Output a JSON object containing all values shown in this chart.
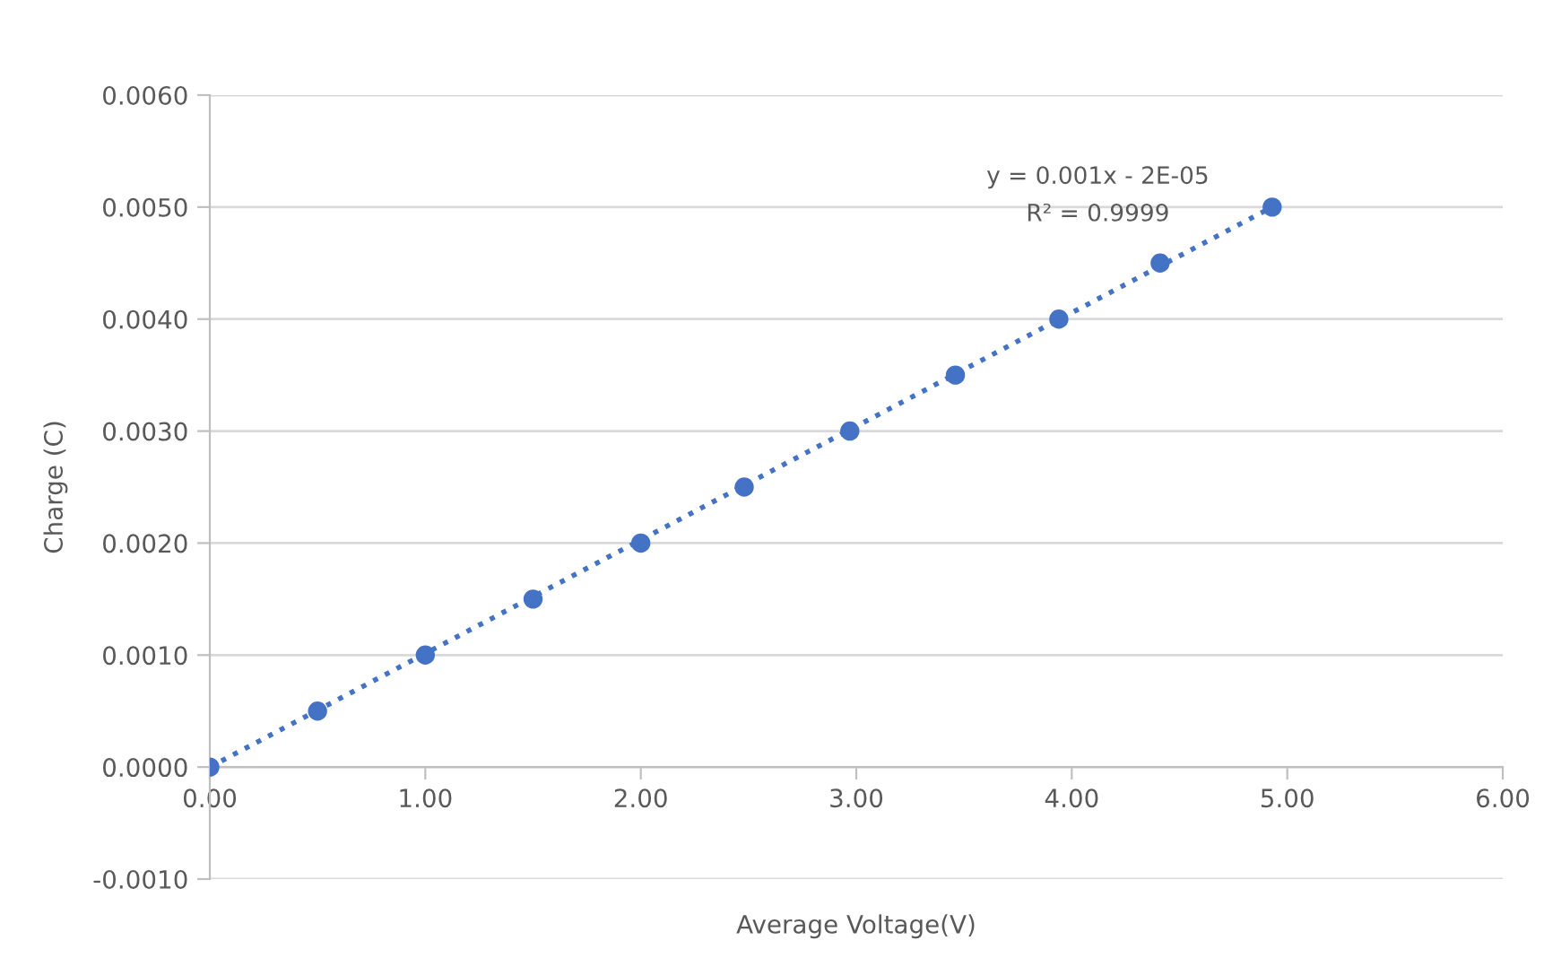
{
  "chart_data": {
    "type": "scatter",
    "xlabel": "Average Voltage(V)",
    "ylabel": "Charge (C)",
    "series": [
      {
        "color": "#4472c4",
        "marker": "circle",
        "x": [
          0,
          0.5,
          1.0,
          1.5,
          2.0,
          2.48,
          2.97,
          3.46,
          3.94,
          4.41,
          4.93
        ],
        "values": [
          0,
          0.0005,
          0.001,
          0.0015,
          0.002,
          0.0025,
          0.003,
          0.0035,
          0.004,
          0.0045,
          0.005
        ]
      },
      {
        "type": "line",
        "color": "#4472c4",
        "line_style": "dotted",
        "marker": "none",
        "x": [
          0,
          4.93
        ],
        "values": [
          0,
          0.005
        ]
      }
    ],
    "xlim": [
      0,
      6
    ],
    "xticks": [
      {
        "value": 0,
        "label": "0.00"
      },
      {
        "value": 1,
        "label": "1.00"
      },
      {
        "value": 2,
        "label": "2.00"
      },
      {
        "value": 3,
        "label": "3.00"
      },
      {
        "value": 4,
        "label": "4.00"
      },
      {
        "value": 5,
        "label": "5.00"
      },
      {
        "value": 6,
        "label": "6.00"
      }
    ],
    "ylim": [
      -0.001,
      0.006
    ],
    "yticks": [
      {
        "value": -0.001,
        "label": "-0.0010"
      },
      {
        "value": 0,
        "label": "0.0000"
      },
      {
        "value": 0.001,
        "label": "0.0010"
      },
      {
        "value": 0.002,
        "label": "0.0020"
      },
      {
        "value": 0.003,
        "label": "0.0030"
      },
      {
        "value": 0.004,
        "label": "0.0040"
      },
      {
        "value": 0.005,
        "label": "0.0050"
      },
      {
        "value": 0.006,
        "label": "0.0060"
      }
    ],
    "grid": "y",
    "annotations": [
      "y = 0.001x - 2E-05",
      "R² = 0.9999"
    ]
  }
}
